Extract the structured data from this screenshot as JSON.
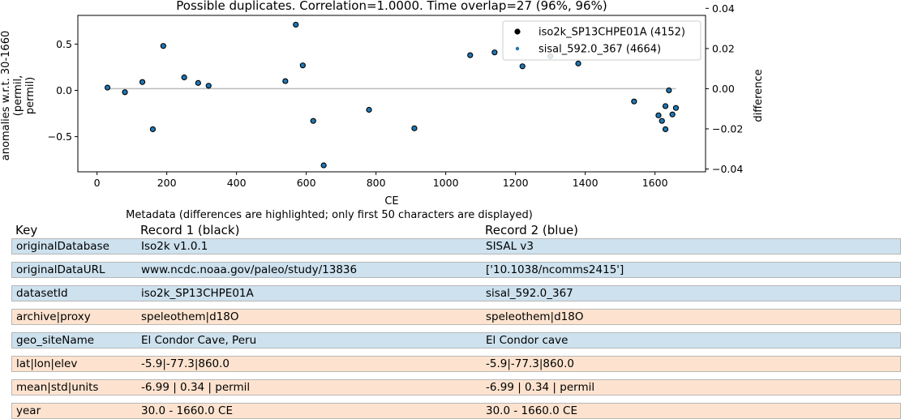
{
  "chart_data": {
    "type": "scatter",
    "title": "Possible duplicates. Correlation=1.0000. Time overlap=27 (96%, 96%)",
    "xlabel": "CE",
    "ylabel": "anomalies w.r.t. 30-1660 (permil, permil)",
    "ylabel_lines": [
      "anomalies w.r.t. 30-1660",
      "(permil,",
      "permil)"
    ],
    "y2label": "difference",
    "xlim": [
      -55,
      1745
    ],
    "ylim": [
      -0.88,
      0.81
    ],
    "y2lim": [
      -0.0414,
      0.0365
    ],
    "xticks": [
      0,
      200,
      400,
      600,
      800,
      1000,
      1200,
      1400,
      1600
    ],
    "yticks": [
      -0.5,
      0.0,
      0.5
    ],
    "ytick_labels": [
      "−0.5",
      "0.0",
      "0.5"
    ],
    "y2ticks": [
      -0.04,
      -0.02,
      0.0,
      0.02,
      0.04
    ],
    "y2tick_labels": [
      "−0.04",
      "−0.02",
      "0.00",
      "0.02",
      "0.04"
    ],
    "grid": false,
    "legend": "top-right",
    "series": [
      {
        "name": "iso2k_SP13CHPE01A (4152)",
        "color": "#000000",
        "x": [
          30,
          80,
          130,
          160,
          190,
          250,
          290,
          320,
          540,
          570,
          590,
          620,
          650,
          780,
          910,
          1070,
          1140,
          1220,
          1300,
          1380,
          1540,
          1610,
          1620,
          1630,
          1630,
          1640,
          1650,
          1660
        ],
        "y": [
          0.03,
          -0.02,
          0.09,
          -0.42,
          0.48,
          0.14,
          0.08,
          0.05,
          0.1,
          0.71,
          0.27,
          -0.33,
          -0.81,
          -0.21,
          -0.41,
          0.38,
          0.41,
          0.26,
          0.37,
          0.29,
          -0.12,
          -0.27,
          -0.33,
          -0.42,
          -0.17,
          0.0,
          -0.26,
          -0.19
        ]
      },
      {
        "name": "sisal_592.0_367 (4664)",
        "color": "#1f77b4",
        "x": [
          30,
          80,
          130,
          160,
          190,
          250,
          290,
          320,
          540,
          570,
          590,
          620,
          650,
          780,
          910,
          1070,
          1140,
          1220,
          1300,
          1380,
          1540,
          1610,
          1620,
          1630,
          1630,
          1640,
          1650,
          1660
        ],
        "y": [
          0.03,
          -0.02,
          0.09,
          -0.42,
          0.48,
          0.14,
          0.08,
          0.05,
          0.1,
          0.71,
          0.27,
          -0.33,
          -0.81,
          -0.21,
          -0.41,
          0.38,
          0.41,
          0.26,
          0.37,
          0.29,
          -0.12,
          -0.27,
          -0.33,
          -0.42,
          -0.17,
          0.0,
          -0.26,
          -0.19
        ]
      }
    ],
    "difference": {
      "color": "#bbbbbb",
      "x": [
        30,
        1660
      ],
      "y": [
        0.0,
        0.0
      ]
    }
  },
  "metadata": {
    "title": "Metadata (differences are highlighted; only first 50 characters are displayed)",
    "headers": [
      "Key",
      "Record 1 (black)",
      "Record 2 (blue)"
    ],
    "rows": [
      {
        "key": "originalDatabase",
        "r1": "Iso2k v1.0.1",
        "r2": "SISAL v3",
        "different": true,
        "color": "#cde1ee"
      },
      {
        "key": "originalDataURL",
        "r1": "www.ncdc.noaa.gov/paleo/study/13836",
        "r2": "['10.1038/ncomms2415']",
        "different": true,
        "color": "#cde1ee"
      },
      {
        "key": "datasetId",
        "r1": "iso2k_SP13CHPE01A",
        "r2": "sisal_592.0_367",
        "different": true,
        "color": "#cde1ee"
      },
      {
        "key": "archive|proxy",
        "r1": "speleothem|d18O",
        "r2": "speleothem|d18O",
        "different": false,
        "color": "#fde3cf"
      },
      {
        "key": "geo_siteName",
        "r1": "El Condor Cave, Peru",
        "r2": "El Condor cave",
        "different": true,
        "color": "#cde1ee"
      },
      {
        "key": "lat|lon|elev",
        "r1": "-5.9|-77.3|860.0",
        "r2": "-5.9|-77.3|860.0",
        "different": false,
        "color": "#fde3cf"
      },
      {
        "key": "mean|std|units",
        "r1": "-6.99 | 0.34 | permil",
        "r2": "-6.99 | 0.34 | permil",
        "different": false,
        "color": "#fde3cf"
      },
      {
        "key": "year",
        "r1": "30.0 - 1660.0 CE",
        "r2": "30.0 - 1660.0 CE",
        "different": false,
        "color": "#fde3cf"
      }
    ]
  }
}
